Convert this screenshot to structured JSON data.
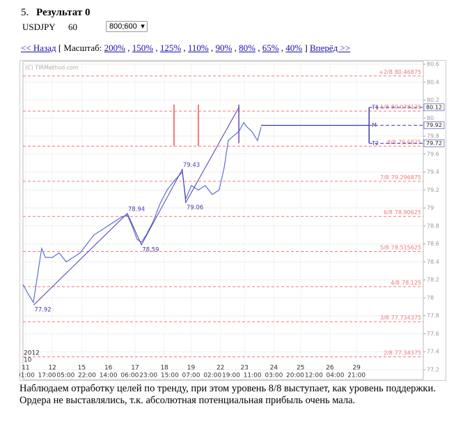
{
  "header": {
    "number": "5.",
    "title": "Результат 0",
    "symbol": "USDJPY",
    "timeframe": "60",
    "size_select": "800;600"
  },
  "nav": {
    "back": "<< Назад",
    "scale_label": "[ Масштаб:",
    "scales": [
      "200%",
      "150%",
      "125%",
      "110%",
      "90%",
      "80%",
      "65%",
      "40%"
    ],
    "separator": ",",
    "close": "]",
    "forward": "Вперёд >>"
  },
  "chart_data": {
    "type": "line",
    "watermark": "(C) TIRMethod.com",
    "color": "#5b6fd6",
    "x": [
      0,
      1.8,
      3.9,
      5.7,
      7,
      8.4,
      11,
      13.6,
      16.2,
      18.8,
      21.4,
      24,
      26.6,
      29.2,
      31.8,
      34.4,
      37,
      39.1,
      40.9,
      42.8,
      44.4,
      46.2,
      48.8,
      51.4,
      54,
      56.6,
      59.7,
      61,
      63.1,
      65.7,
      68.3,
      70.9,
      73.5,
      75.4,
      76.9,
      78.8,
      80.9,
      82.7,
      84,
      85.8,
      87.9,
      89.2
    ],
    "values": [
      78.15,
      78.05,
      77.95,
      78.3,
      78.55,
      78.45,
      78.45,
      78.5,
      78.4,
      78.45,
      78.5,
      78.6,
      78.7,
      78.75,
      78.8,
      78.85,
      78.9,
      78.92,
      78.8,
      78.65,
      78.62,
      78.7,
      78.85,
      79.05,
      79.2,
      79.3,
      79.4,
      79.1,
      79.25,
      79.2,
      79.25,
      79.15,
      79.2,
      79.45,
      79.75,
      79.8,
      79.85,
      79.95,
      79.9,
      79.85,
      79.75,
      79.9
    ],
    "xlim": [
      0,
      150
    ],
    "ylim": [
      77.2,
      80.6
    ],
    "yticks": [
      77.2,
      77.4,
      77.6,
      77.8,
      78,
      78.2,
      78.4,
      78.6,
      78.8,
      79,
      79.2,
      79.4,
      79.6,
      79.8,
      80,
      80.2,
      80.4,
      80.6
    ],
    "xticks": [
      {
        "value": 1,
        "label": "11"
      },
      {
        "value": 11,
        "label": "12"
      },
      {
        "value": 22,
        "label": "15"
      },
      {
        "value": 32,
        "label": "16"
      },
      {
        "value": 42,
        "label": "17"
      },
      {
        "value": 53,
        "label": "18"
      },
      {
        "value": 63,
        "label": "19"
      },
      {
        "value": 74,
        "label": "22"
      },
      {
        "value": 83,
        "label": "23"
      },
      {
        "value": 94,
        "label": "24"
      },
      {
        "value": 104,
        "label": "25"
      },
      {
        "value": 115,
        "label": "26"
      },
      {
        "value": 125,
        "label": "29"
      }
    ],
    "xticks2": [
      {
        "value": 1,
        "label": "01:00"
      },
      {
        "value": 9,
        "label": "17:00"
      },
      {
        "value": 16,
        "label": "05:00"
      },
      {
        "value": 24,
        "label": "22:00"
      },
      {
        "value": 32,
        "label": "14:00"
      },
      {
        "value": 40,
        "label": "06:00"
      },
      {
        "value": 47,
        "label": "23:00"
      },
      {
        "value": 55,
        "label": "15:00"
      },
      {
        "value": 63,
        "label": "07:00"
      },
      {
        "value": 71,
        "label": "02:00"
      },
      {
        "value": 78,
        "label": "19:00"
      },
      {
        "value": 86,
        "label": "11:00"
      },
      {
        "value": 94,
        "label": "03:00"
      },
      {
        "value": 102,
        "label": "20:00"
      },
      {
        "value": 109,
        "label": "12:00"
      },
      {
        "value": 117,
        "label": "04:00"
      },
      {
        "value": 125,
        "label": "21:00"
      }
    ],
    "year": "2012",
    "month": "10",
    "grid": true,
    "levels": [
      {
        "name": "+2/8",
        "value": 80.46875
      },
      {
        "name": "+1/8",
        "value": 80.078125
      },
      {
        "name": "8/8",
        "value": 79.6875
      },
      {
        "name": "7/8",
        "value": 79.296875
      },
      {
        "name": "6/8",
        "value": 78.90625
      },
      {
        "name": "5/8",
        "value": 78.515625
      },
      {
        "name": "4/8",
        "value": 78.125
      },
      {
        "name": "3/8",
        "value": 77.734375
      },
      {
        "name": "2/8",
        "value": 77.34375
      }
    ],
    "level_color": "#f07878",
    "zigzag": {
      "color": "#4b3aa8",
      "x": [
        4,
        39.1,
        44.4,
        59.7,
        61,
        80.9
      ],
      "values": [
        77.92,
        78.94,
        78.59,
        79.43,
        79.06,
        80.12
      ],
      "value_labels": [
        "77.92",
        "78.94",
        "78.59",
        "79.43",
        "79.06",
        null
      ]
    },
    "signals": {
      "color": "#f05050",
      "x": [
        56.6,
        65.7
      ],
      "low": 79.69,
      "high": 80.15
    },
    "entry": {
      "color": "#6a4ab8",
      "x": 80.9,
      "low": 79.72,
      "high": 80.15
    },
    "targets": {
      "color": "#3a3ab0",
      "x": 129.7,
      "line_x": [
        89.2,
        129.7
      ],
      "names": [
        "T1",
        "M",
        "T2"
      ],
      "values": [
        80.12,
        79.92,
        79.72
      ]
    }
  },
  "caption": "Наблюдаем отработку целей по тренду, при этом уровень 8/8 выступает, как уровень поддержки. Ордера не выставлялись, т.к. абсолютная потенциальная прибыль очень мала."
}
